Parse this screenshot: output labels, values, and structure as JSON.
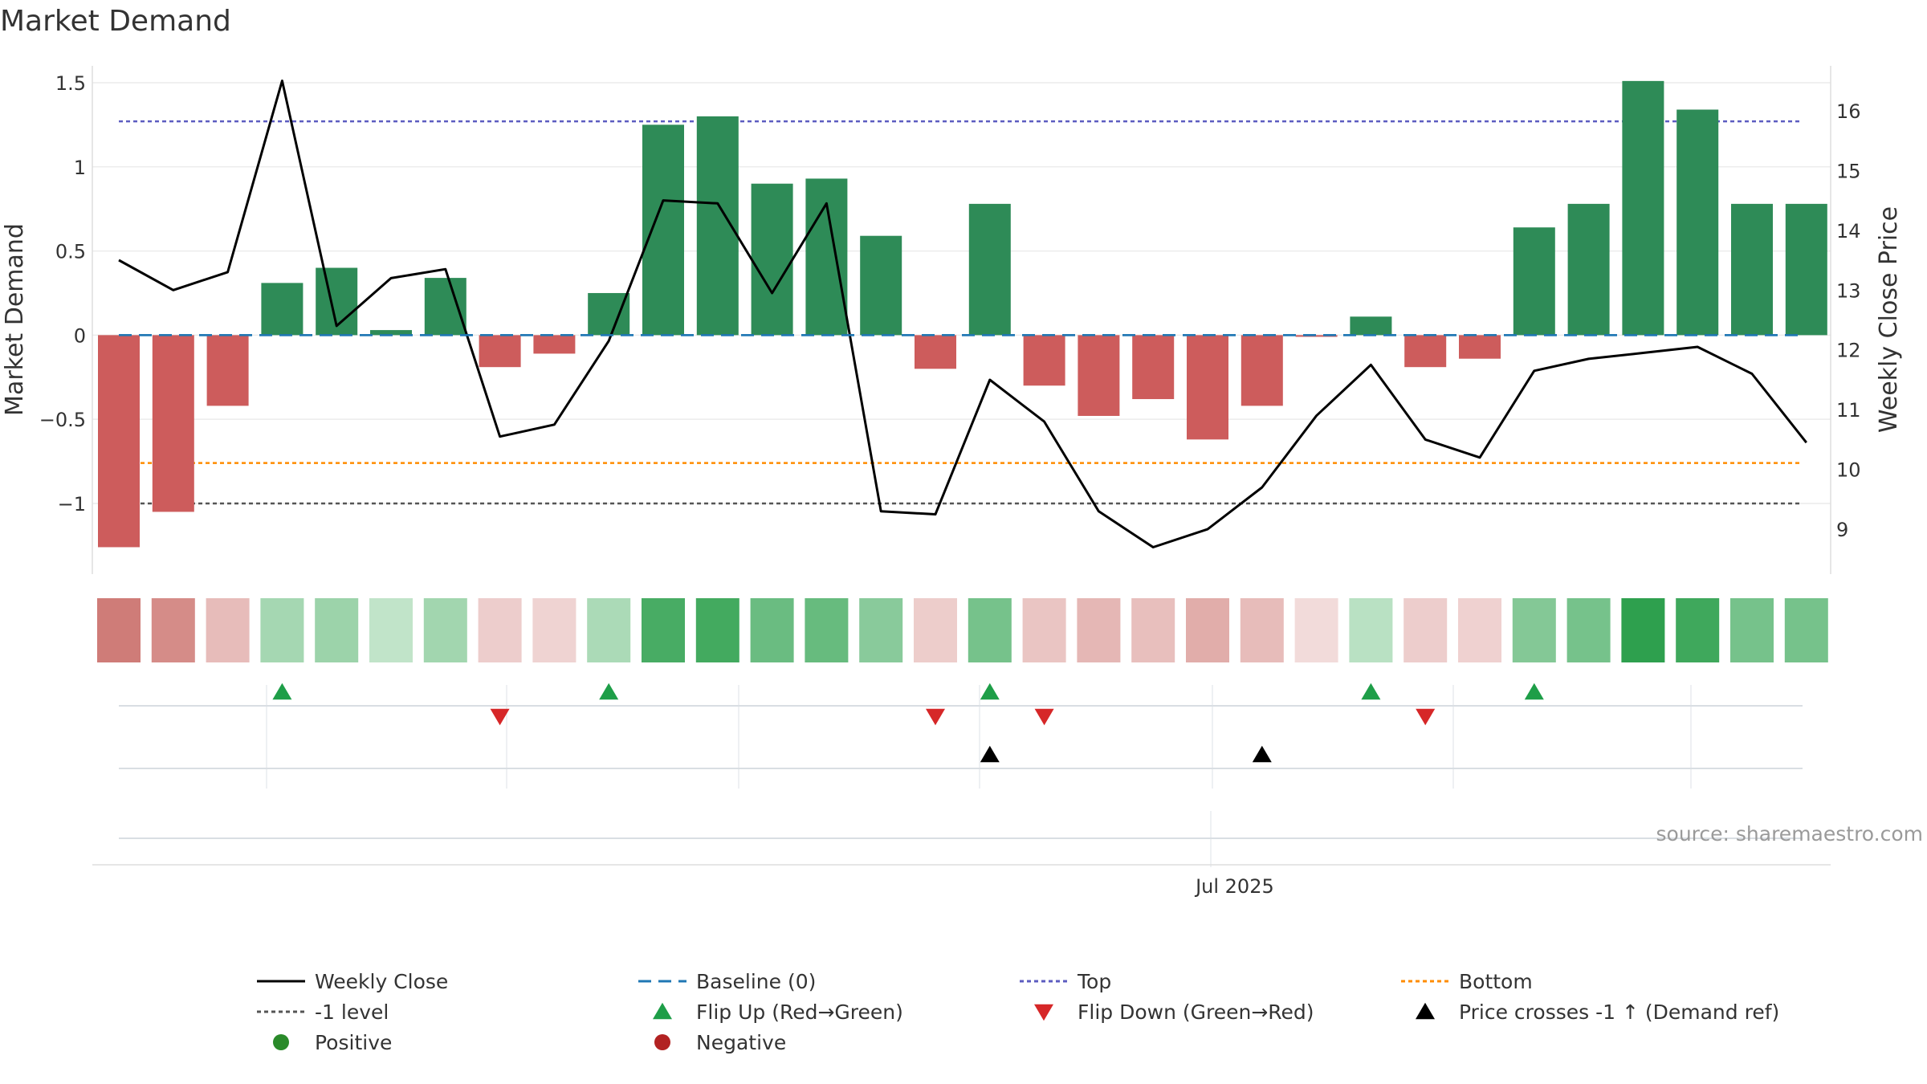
{
  "chart_data": {
    "type": "bar",
    "title": "Market Demand",
    "ylabel": "Market Demand",
    "y2label": "Weekly Close Price",
    "ylim": [
      -1.42,
      1.6
    ],
    "y2lim": [
      8.25,
      16.75
    ],
    "yticks": [
      {
        "v": 1.5,
        "label": "1.5"
      },
      {
        "v": 1,
        "label": "1"
      },
      {
        "v": 0.5,
        "label": "0.5"
      },
      {
        "v": 0,
        "label": "0"
      },
      {
        "v": -0.5,
        "label": "−0.5"
      },
      {
        "v": -1,
        "label": "−1"
      }
    ],
    "y2ticks": [
      {
        "v": 16,
        "label": "16"
      },
      {
        "v": 15,
        "label": "15"
      },
      {
        "v": 14,
        "label": "14"
      },
      {
        "v": 13,
        "label": "13"
      },
      {
        "v": 12,
        "label": "12"
      },
      {
        "v": 11,
        "label": "11"
      },
      {
        "v": 10,
        "label": "10"
      },
      {
        "v": 9,
        "label": "9"
      }
    ],
    "xtick": {
      "label": "Jul 2025",
      "index": 20.5
    },
    "demand": [
      -1.26,
      -1.05,
      -0.42,
      0.31,
      0.4,
      0.03,
      0.34,
      -0.19,
      -0.11,
      0.25,
      1.25,
      1.3,
      0.9,
      0.93,
      0.59,
      -0.2,
      0.78,
      -0.3,
      -0.48,
      -0.38,
      -0.62,
      -0.42,
      -0.01,
      0.11,
      -0.19,
      -0.14,
      0.64,
      0.78,
      1.51,
      1.34,
      0.78,
      0.78
    ],
    "weekly_close": [
      13.5,
      13.0,
      13.3,
      16.5,
      12.4,
      13.2,
      13.35,
      10.55,
      10.75,
      12.15,
      14.5,
      14.45,
      12.95,
      14.45,
      9.3,
      9.25,
      11.5,
      10.8,
      9.3,
      8.7,
      9.0,
      9.7,
      10.9,
      11.75,
      10.5,
      10.2,
      11.65,
      11.85,
      11.95,
      12.05,
      11.6,
      10.45
    ],
    "top_level": 1.27,
    "bottom_level": -0.76,
    "minus_one_level": -1,
    "baseline": 0,
    "flip_up": [
      3,
      9,
      16,
      23,
      26
    ],
    "flip_down": [
      7,
      15,
      17,
      24
    ],
    "price_cross": [
      16,
      21
    ],
    "colors": {
      "positive": "#2e8b57",
      "negative": "#cd5c5c",
      "weekly_close": "#000000",
      "baseline": "#1f77b4",
      "top": "#5c5cc0",
      "bottom": "#ff8c00",
      "minus_one": "#555555",
      "flip_up": "#1e9e48",
      "flip_down": "#d62728",
      "price_cross": "#000000",
      "positive_dot": "#2a8a2a",
      "negative_dot": "#b22222"
    },
    "legend": [
      {
        "label": "Weekly Close",
        "kind": "line",
        "color": "#000000",
        "dash": ""
      },
      {
        "label": "Baseline (0)",
        "kind": "line",
        "color": "#1f77b4",
        "dash": "16,9"
      },
      {
        "label": "Top",
        "kind": "line",
        "color": "#5c5cc0",
        "dash": "5,4"
      },
      {
        "label": "Bottom",
        "kind": "line",
        "color": "#ff8c00",
        "dash": "5,4"
      },
      {
        "label": "-1 level",
        "kind": "line",
        "color": "#555555",
        "dash": "5,4"
      },
      {
        "label": "Flip Up (Red→Green)",
        "kind": "tri-up",
        "color": "#1e9e48"
      },
      {
        "label": "Flip Down (Green→Red)",
        "kind": "tri-down",
        "color": "#d62728"
      },
      {
        "label": "Price crosses -1 ↑ (Demand ref)",
        "kind": "tri-up",
        "color": "#000000"
      },
      {
        "label": "Positive",
        "kind": "dot",
        "color": "#2a8a2a"
      },
      {
        "label": "Negative",
        "kind": "dot",
        "color": "#b22222"
      }
    ],
    "source": "source: sharemaestro.com"
  }
}
